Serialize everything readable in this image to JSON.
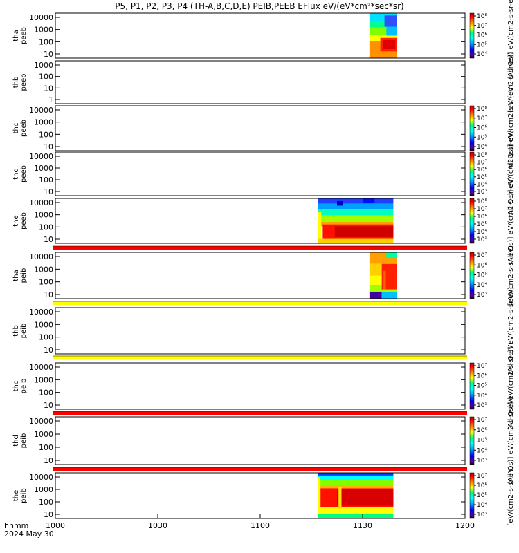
{
  "title": "P5, P1, P2, P3, P4 (TH-A,B,C,D,E) PEIB,PEEB EFlux eV/(eV*cm²*sec*sr)",
  "chart_data": {
    "type": "heatmap",
    "x_ticks": [
      "1000",
      "1030",
      "1100",
      "1130",
      "1200"
    ],
    "x_range": [
      "10:00",
      "12:00"
    ],
    "x_corner_label": "hhmm",
    "date_label": "2024 May 30",
    "colors": {
      "scale": [
        "#5a00a0",
        "#0000ff",
        "#00a0ff",
        "#00ffff",
        "#00ff80",
        "#ffff00",
        "#ff8000",
        "#ff0000",
        "#c00000"
      ],
      "flag_red": "#ff0000",
      "flag_yellow": "#ffff00"
    },
    "panels": [
      {
        "id": "tha_peeb",
        "ylabel": [
          "tha",
          "peeb"
        ],
        "yticks": [
          "10",
          "100",
          "1000",
          "10000"
        ],
        "cbar_ticks": [
          "10⁴",
          "10⁵",
          "10⁶",
          "10⁷",
          "10⁸"
        ],
        "cbar_label": "(All Qs)] eV/(cm2-s-sr-eV)",
        "blocks": [
          {
            "start": "11:32",
            "end": "11:40",
            "kind": "peeb_a"
          }
        ]
      },
      {
        "id": "thb_peeb",
        "ylabel": [
          "thb",
          "peeb"
        ],
        "yticks": [
          "1",
          "10",
          "100",
          "1000"
        ],
        "cbar_ticks": [],
        "cbar_label": "[eV/(cm2-s-sr-eV)",
        "blocks": []
      },
      {
        "id": "thc_peeb",
        "ylabel": [
          "thc",
          "peeb"
        ],
        "yticks": [
          "10",
          "100",
          "1000",
          "10000"
        ],
        "cbar_ticks": [
          "10⁴",
          "10⁵",
          "10⁶",
          "10⁷",
          "10⁸"
        ],
        "cbar_label": "(All Qs)] eV/(cm2-s-sr-eV)",
        "blocks": []
      },
      {
        "id": "thd_peeb",
        "ylabel": [
          "thd",
          "peeb"
        ],
        "yticks": [
          "10",
          "100",
          "1000",
          "10000"
        ],
        "cbar_ticks": [
          "10³",
          "10⁴",
          "10⁵",
          "10⁶",
          "10⁷",
          "10⁸"
        ],
        "cbar_label": "(All Qs)] eV/(cm2-s-sr-eV)",
        "blocks": []
      },
      {
        "id": "the_peeb",
        "ylabel": [
          "the",
          "peeb"
        ],
        "yticks": [
          "10",
          "100",
          "1000",
          "10000"
        ],
        "cbar_ticks": [
          "10³",
          "10⁴",
          "10⁵",
          "10⁶",
          "10⁷",
          "10⁸"
        ],
        "cbar_label": "(All Qs)] eV/(cm2-s-sr-eV)",
        "blocks": [
          {
            "start": "11:17",
            "end": "11:39",
            "kind": "peeb_e"
          }
        ]
      },
      {
        "id": "tha_peib",
        "ylabel": [
          "tha",
          "peib"
        ],
        "yticks": [
          "10",
          "100",
          "1000",
          "10000"
        ],
        "cbar_ticks": [
          "10³",
          "10⁴",
          "10⁵",
          "10⁶",
          "10⁷"
        ],
        "cbar_label": "[eV/(cm2-s-sr-eV)",
        "flag": "red",
        "blocks": [
          {
            "start": "11:32",
            "end": "11:40",
            "kind": "peib_a"
          }
        ]
      },
      {
        "id": "thb_peib",
        "ylabel": [
          "thb",
          "peib"
        ],
        "yticks": [
          "10",
          "100",
          "1000",
          "10000"
        ],
        "cbar_ticks": [],
        "cbar_label": "(All Qs)] eV/(cm2-s-sr-eV)",
        "flag": "yellow",
        "blocks": []
      },
      {
        "id": "thc_peib",
        "ylabel": [
          "thc",
          "peib"
        ],
        "yticks": [
          "10",
          "100",
          "1000",
          "10000"
        ],
        "cbar_ticks": [
          "10³",
          "10⁴",
          "10⁵",
          "10⁶",
          "10⁷"
        ],
        "cbar_label": "(All Qs)] eV/(cm2-s-sr-eV)",
        "flag": "yellow",
        "blocks": []
      },
      {
        "id": "thd_peib",
        "ylabel": [
          "thd",
          "peib"
        ],
        "yticks": [
          "10",
          "100",
          "1000",
          "10000"
        ],
        "cbar_ticks": [
          "10³",
          "10⁴",
          "10⁵",
          "10⁶",
          "10⁷"
        ],
        "cbar_label": "(All Qs)] eV/(cm2-s-sr-eV)",
        "flag": "red",
        "blocks": []
      },
      {
        "id": "the_peib",
        "ylabel": [
          "the",
          "peib"
        ],
        "yticks": [
          "10",
          "100",
          "1000",
          "10000"
        ],
        "cbar_ticks": [
          "10³",
          "10⁴",
          "10⁵",
          "10⁶",
          "10⁷"
        ],
        "cbar_label": "[eV/(cm2-s-sr-eV)",
        "flag": "red",
        "blocks": [
          {
            "start": "11:17",
            "end": "11:39",
            "kind": "peib_e"
          }
        ]
      }
    ]
  }
}
